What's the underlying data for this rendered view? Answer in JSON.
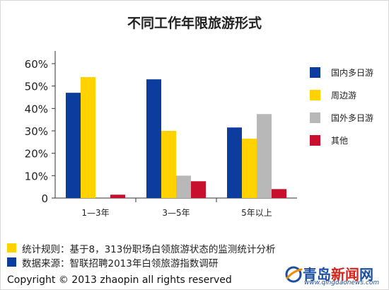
{
  "chart_data": {
    "type": "bar",
    "title": "不同工作年限旅游形式",
    "xlabel": "",
    "ylabel": "",
    "categories": [
      "1—3年",
      "3—5年",
      "5年以上"
    ],
    "y_ticks": [
      "0",
      "10%",
      "20%",
      "30%",
      "40%",
      "50%",
      "60%"
    ],
    "ylim": [
      0,
      60
    ],
    "grid": false,
    "legend_position": "right",
    "series": [
      {
        "name": "国内多日游",
        "color": "#0c3d9e",
        "values": [
          47,
          53,
          31.5
        ]
      },
      {
        "name": "周边游",
        "color": "#ffd200",
        "values": [
          54,
          30,
          26.5
        ]
      },
      {
        "name": "国外多日游",
        "color": "#b8b8b8",
        "values": [
          0,
          10,
          37.5
        ]
      },
      {
        "name": "其他",
        "color": "#c8102e",
        "values": [
          1.5,
          7.5,
          4
        ]
      }
    ]
  },
  "notes": [
    {
      "color": "#ffd200",
      "text": "统计规则：基于8，313份职场白领旅游状态的监测统计分析"
    },
    {
      "color": "#0c3d9e",
      "text": "数据来源：智联招聘2013年白领旅游指数调研"
    }
  ],
  "copyright": "Copyright © 2013 zhaopin all rights reserved",
  "watermark": {
    "name_part1": "青岛",
    "name_part2": "新闻",
    "name_part3": "网",
    "url": "www.qingdaonews.com",
    "logo_icon": "globe-logo-icon"
  }
}
